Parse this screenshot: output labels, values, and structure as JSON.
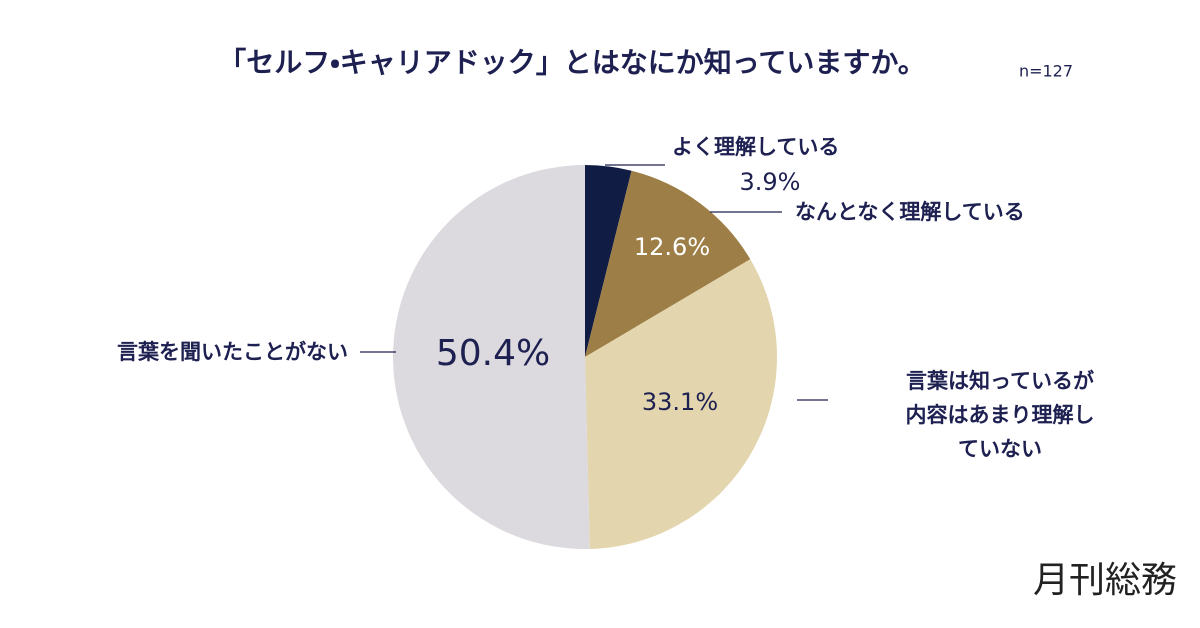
{
  "chart_data": {
    "type": "pie",
    "title": "「セルフ・キャリアドック」とはなにか知っていますか。",
    "subtitle": "n=127",
    "categories": [
      "よく理解している",
      "なんとなく理解している",
      "言葉は知っているが\n内容はあまり理解していない",
      "言葉を聞いたことがない"
    ],
    "values": [
      3.9,
      12.6,
      33.1,
      50.4
    ],
    "value_labels": [
      "3.9%",
      "12.6%",
      "33.1%",
      "50.4%"
    ],
    "colors": [
      "#101c44",
      "#9c7e46",
      "#e3d5ad",
      "#dcdadf"
    ]
  },
  "brand": "月刊総務"
}
